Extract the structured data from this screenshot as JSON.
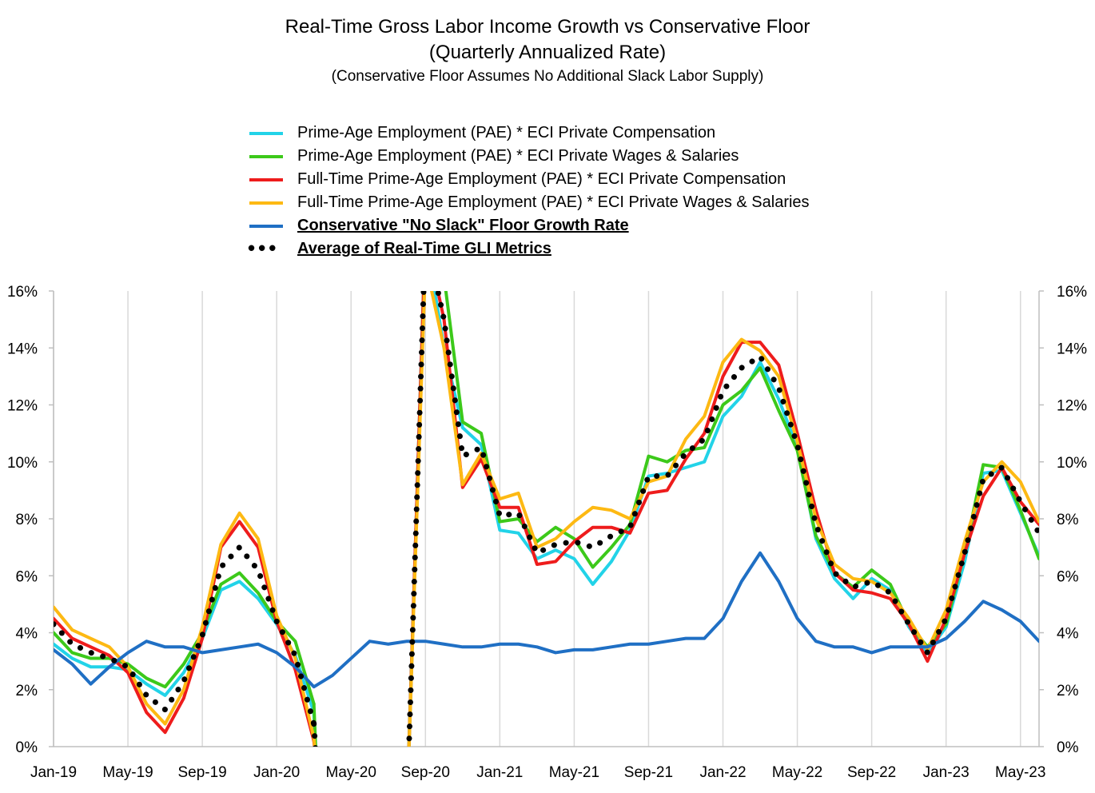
{
  "chart_data": {
    "type": "line",
    "title": "Real-Time Gross Labor Income Growth vs Conservative Floor",
    "subtitle": "(Quarterly Annualized Rate)",
    "note": "(Conservative Floor Assumes No Additional Slack Labor Supply)",
    "ylim": [
      0,
      16
    ],
    "y_ticks": [
      "0%",
      "2%",
      "4%",
      "6%",
      "8%",
      "10%",
      "12%",
      "14%",
      "16%"
    ],
    "x_tick_labels": [
      "Jan-19",
      "May-19",
      "Sep-19",
      "Jan-20",
      "May-20",
      "Sep-20",
      "Jan-21",
      "May-21",
      "Sep-21",
      "Jan-22",
      "May-22",
      "Sep-22",
      "Jan-23",
      "May-23"
    ],
    "x_months": [
      "Jan-19",
      "Feb-19",
      "Mar-19",
      "Apr-19",
      "May-19",
      "Jun-19",
      "Jul-19",
      "Aug-19",
      "Sep-19",
      "Oct-19",
      "Nov-19",
      "Dec-19",
      "Jan-20",
      "Feb-20",
      "Mar-20",
      "Apr-20",
      "May-20",
      "Jun-20",
      "Jul-20",
      "Aug-20",
      "Sep-20",
      "Oct-20",
      "Nov-20",
      "Dec-20",
      "Jan-21",
      "Feb-21",
      "Mar-21",
      "Apr-21",
      "May-21",
      "Jun-21",
      "Jul-21",
      "Aug-21",
      "Sep-21",
      "Oct-21",
      "Nov-21",
      "Dec-21",
      "Jan-22",
      "Feb-22",
      "Mar-22",
      "Apr-22",
      "May-22",
      "Jun-22",
      "Jul-22",
      "Aug-22",
      "Sep-22",
      "Oct-22",
      "Nov-22",
      "Dec-22",
      "Jan-23",
      "Feb-23",
      "Mar-23",
      "Apr-23",
      "May-23",
      "Jun-23"
    ],
    "series": [
      {
        "name": "Prime-Age Employment (PAE) * ECI Private Compensation",
        "color": "#22d3e8",
        "style": "solid",
        "values": [
          3.6,
          3.1,
          2.8,
          2.8,
          2.7,
          2.2,
          1.8,
          2.6,
          3.8,
          5.5,
          5.8,
          5.2,
          4.3,
          3.2,
          1.2,
          null,
          null,
          null,
          null,
          null,
          18,
          14,
          11.2,
          10.6,
          7.6,
          7.5,
          6.6,
          6.9,
          6.6,
          5.7,
          6.5,
          7.6,
          9.5,
          9.6,
          9.8,
          10,
          11.6,
          12.3,
          13.5,
          12.2,
          10.5,
          7.3,
          5.9,
          5.2,
          5.9,
          5.5,
          4.2,
          3.3,
          4.2,
          6.5,
          9.6,
          9.7,
          8.2,
          6.7
        ]
      },
      {
        "name": "Prime-Age Employment (PAE) * ECI Private Wages & Salaries",
        "color": "#3cc91a",
        "style": "solid",
        "values": [
          4.0,
          3.3,
          3.1,
          3.1,
          2.9,
          2.4,
          2.1,
          2.9,
          4.0,
          5.7,
          6.1,
          5.4,
          4.4,
          3.7,
          1.5,
          null,
          null,
          null,
          null,
          null,
          18,
          16.5,
          11.4,
          11,
          7.9,
          8,
          7.2,
          7.7,
          7.3,
          6.3,
          7,
          7.8,
          10.2,
          10,
          10.4,
          10.5,
          12,
          12.5,
          13.3,
          11.8,
          10.4,
          7.4,
          6.1,
          5.6,
          6.2,
          5.7,
          4.3,
          3.5,
          4.3,
          6.8,
          9.9,
          9.8,
          8.3,
          6.6
        ]
      },
      {
        "name": "Full-Time Prime-Age Employment (PAE) * ECI Private Compensation",
        "color": "#ee1c1c",
        "style": "solid",
        "values": [
          4.5,
          3.8,
          3.5,
          3.2,
          2.6,
          1.2,
          0.5,
          1.7,
          3.8,
          7.0,
          7.9,
          7.0,
          4.4,
          2.7,
          0.2,
          null,
          null,
          null,
          null,
          null,
          18,
          15,
          9.1,
          10.1,
          8.4,
          8.4,
          6.4,
          6.5,
          7.2,
          7.7,
          7.7,
          7.5,
          8.9,
          9.0,
          10.1,
          11.0,
          13.0,
          14.2,
          14.2,
          13.4,
          11.0,
          8.3,
          6.1,
          5.5,
          5.4,
          5.2,
          4.3,
          3.0,
          4.5,
          6.8,
          8.8,
          9.8,
          8.6,
          7.8
        ]
      },
      {
        "name": "Full-Time Prime-Age Employment (PAE) * ECI Private Wages & Salaries",
        "color": "#fdb913",
        "style": "solid",
        "values": [
          4.9,
          4.1,
          3.8,
          3.5,
          2.8,
          1.5,
          0.8,
          2.0,
          4.2,
          7.1,
          8.2,
          7.3,
          4.6,
          3.1,
          0.3,
          null,
          null,
          null,
          null,
          null,
          17,
          14,
          9.2,
          10.3,
          8.7,
          8.9,
          7.0,
          7.3,
          7.9,
          8.4,
          8.3,
          8.0,
          9.3,
          9.5,
          10.8,
          11.6,
          13.5,
          14.3,
          13.9,
          13.0,
          10.7,
          8.0,
          6.4,
          5.9,
          5.8,
          5.4,
          4.5,
          3.4,
          4.8,
          7.2,
          9.3,
          10.0,
          9.3,
          7.9
        ]
      },
      {
        "name": "Conservative \"No Slack\" Floor Growth Rate",
        "color": "#1f6fc4",
        "style": "solid",
        "bold_label": true,
        "values": [
          3.4,
          2.9,
          2.2,
          2.8,
          3.3,
          3.7,
          3.5,
          3.5,
          3.3,
          3.4,
          3.5,
          3.6,
          3.3,
          2.8,
          2.1,
          2.5,
          3.1,
          3.7,
          3.6,
          3.7,
          3.7,
          3.6,
          3.5,
          3.5,
          3.6,
          3.6,
          3.5,
          3.3,
          3.4,
          3.4,
          3.5,
          3.6,
          3.6,
          3.7,
          3.8,
          3.8,
          4.5,
          5.8,
          6.8,
          5.8,
          4.5,
          3.7,
          3.5,
          3.5,
          3.3,
          3.5,
          3.5,
          3.5,
          3.8,
          4.4,
          5.1,
          4.8,
          4.4,
          3.7
        ]
      },
      {
        "name": "Average of Real-Time GLI Metrics",
        "color": "#000000",
        "style": "dotted",
        "bold_label": true,
        "values": [
          4.3,
          3.6,
          3.3,
          3.1,
          2.8,
          1.8,
          1.3,
          2.3,
          3.9,
          6.3,
          7.0,
          6.2,
          4.4,
          3.2,
          0.8,
          null,
          null,
          null,
          null,
          null,
          18,
          15,
          10.2,
          10.5,
          8.1,
          8.2,
          6.8,
          7.1,
          7.2,
          7.0,
          7.4,
          7.7,
          9.5,
          9.5,
          10.3,
          10.8,
          12.5,
          13.3,
          13.7,
          12.6,
          10.6,
          7.8,
          6.1,
          5.6,
          5.8,
          5.4,
          4.3,
          3.3,
          4.5,
          6.8,
          9.4,
          9.8,
          8.6,
          7.5
        ]
      }
    ]
  }
}
